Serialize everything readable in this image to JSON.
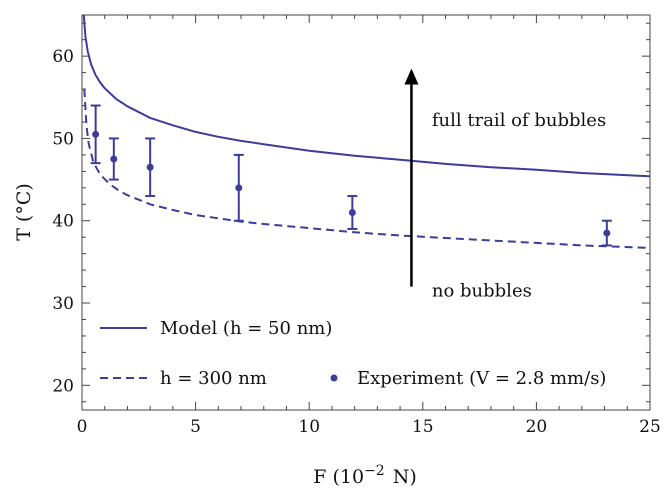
{
  "chart_data": {
    "type": "line",
    "xlabel": "F (10",
    "xlabel_exponent": "−2",
    "xlabel_unit": "N)",
    "ylabel": "T (°C)",
    "xlim": [
      0,
      25
    ],
    "ylim": [
      17,
      65
    ],
    "x_ticks": [
      0,
      5,
      10,
      15,
      20,
      25
    ],
    "y_ticks": [
      20,
      30,
      40,
      50,
      60
    ],
    "grid": false,
    "colors": {
      "series": "#3c3c9a",
      "arrow": "#000000",
      "axis": "#444444"
    },
    "series": [
      {
        "name": "Model (h = 50 nm)",
        "style": "solid",
        "x": [
          0.08,
          0.15,
          0.25,
          0.4,
          0.6,
          0.8,
          1.0,
          1.5,
          2,
          3,
          4,
          5,
          6,
          7,
          8,
          10,
          12,
          14,
          16,
          18,
          20,
          22,
          25
        ],
        "y": [
          65.0,
          62.4,
          60.6,
          59.0,
          57.7,
          56.8,
          56.1,
          54.8,
          53.9,
          52.5,
          51.6,
          50.8,
          50.2,
          49.7,
          49.3,
          48.5,
          47.9,
          47.4,
          46.9,
          46.5,
          46.2,
          45.8,
          45.4
        ]
      },
      {
        "name": "h = 300 nm",
        "style": "dashed",
        "x": [
          0.1,
          0.2,
          0.3,
          0.5,
          0.8,
          1.2,
          1.6,
          2,
          3,
          4,
          5,
          6,
          7,
          8,
          10,
          12,
          14,
          16,
          18,
          20,
          22,
          25
        ],
        "y": [
          56.0,
          51.5,
          49.3,
          47.1,
          45.6,
          44.5,
          43.7,
          43.1,
          42.0,
          41.3,
          40.7,
          40.3,
          39.9,
          39.6,
          39.1,
          38.6,
          38.2,
          37.9,
          37.6,
          37.3,
          37.0,
          36.7
        ]
      },
      {
        "name": "Experiment (V = 2.8 mm/s)",
        "style": "points-with-error-bars",
        "points": [
          {
            "x": 0.6,
            "y": 50.5,
            "ylow": 47.0,
            "yhigh": 54.0
          },
          {
            "x": 1.4,
            "y": 47.5,
            "ylow": 45.0,
            "yhigh": 50.0
          },
          {
            "x": 3.0,
            "y": 46.5,
            "ylow": 43.0,
            "yhigh": 50.0
          },
          {
            "x": 6.9,
            "y": 44.0,
            "ylow": 40.0,
            "yhigh": 48.0
          },
          {
            "x": 11.9,
            "y": 41.0,
            "ylow": 39.0,
            "yhigh": 43.0
          },
          {
            "x": 23.1,
            "y": 38.5,
            "ylow": 37.0,
            "yhigh": 40.0
          }
        ]
      }
    ],
    "annotations": [
      {
        "text": "full trail of bubbles",
        "x": 15.4,
        "y": 51.5
      },
      {
        "text": "no bubbles",
        "x": 15.4,
        "y": 30.8
      }
    ],
    "arrow": {
      "x": 14.5,
      "y_start": 32.0,
      "y_end": 58.5
    },
    "legend": {
      "placement": "bottom-left",
      "entries": [
        {
          "label": "Model (h = 50 nm)",
          "marker": "solid-line"
        },
        {
          "label": "h = 300 nm",
          "marker": "dashed-line"
        },
        {
          "label": "Experiment (V = 2.8 mm/s)",
          "marker": "dot"
        }
      ]
    }
  }
}
